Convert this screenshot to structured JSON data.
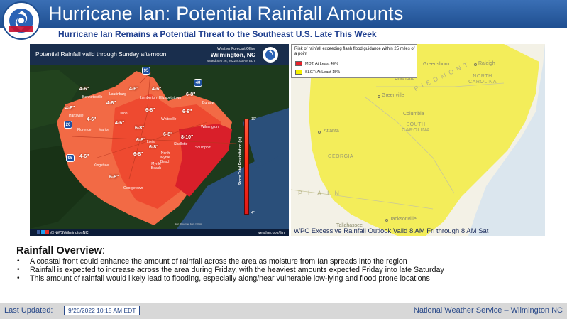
{
  "header": {
    "title": "Hurricane Ian:  Potential Rainfall Amounts",
    "subtitle": "Hurricane Ian Remains a Potential Threat to the Southeast U.S. Late This Week",
    "logo_text": "NATIONAL WEATHER SERVICE"
  },
  "rainfall_map": {
    "title": "Potential Rainfall valid through Sunday afternoon",
    "office_label": "Weather Forecast Office",
    "office_name": "Wilmington, NC",
    "issued": "Issued Sep 26, 2022 8:03 AM EDT",
    "scale_title": "Storm Total Precipitation (in)",
    "scale_max": "10\"",
    "scale_min": "4\"",
    "social": "@NWSWilmingtonNC",
    "website": "weather.gov/ilm",
    "source_note": "Esri, DeLorme, FAO, NOAA",
    "routes": [
      "95",
      "40",
      "20",
      "95"
    ],
    "amount_labels": [
      "4-6\"",
      "4-6\"",
      "4-6\"",
      "4-6\"",
      "4-6\"",
      "4-6\"",
      "6-8\"",
      "6-8\"",
      "6-8\"",
      "4-6\"",
      "6-8\"",
      "6-8\"",
      "8-10\"",
      "6-8\"",
      "6-8\"",
      "6-8\"",
      "4-6\"",
      "6-8\""
    ],
    "cities": [
      "Bennettsville",
      "Laurinburg",
      "Lumberton",
      "Elizabethtown",
      "Burgaw",
      "Hartsville",
      "Dillon",
      "Whiteville",
      "Wilmington",
      "Florence",
      "Marion",
      "Loris",
      "Shallotte",
      "Southport",
      "Kingstree",
      "North Myrtle Beach",
      "Myrtle Beach",
      "Georgetown"
    ],
    "colors": {
      "band_4_6": "#f26a45",
      "band_6_8": "#ee4a30",
      "band_8_10": "#d91f2a",
      "land": "#1d3a1c",
      "water": "#2a4f7a"
    }
  },
  "outlook_map": {
    "legend_title": "Risk of rainfall exceeding flash flood guidance within 25 miles of a point",
    "legend_items": [
      {
        "label": "MDT: At Least 40%",
        "color": "#e8202a"
      },
      {
        "label": "SLGT: At Least 15%",
        "color": "#f5f000"
      }
    ],
    "cities": [
      "Greensboro",
      "Raleigh",
      "Charlotte",
      "Greenville",
      "Columbia",
      "Atlanta",
      "Tallahassee",
      "Jacksonville"
    ],
    "states": [
      "NORTH CAROLINA",
      "SOUTH CAROLINA",
      "GEORGIA"
    ],
    "regions": [
      "PIEDMONT",
      "PLAIN"
    ],
    "caption": "WPC Excessive Rainfall Outlook Valid 8 AM Fri through 8 AM Sat",
    "colors": {
      "slight": "#f2ec52",
      "land": "#f3f1e6",
      "water": "#dbe6ee"
    }
  },
  "overview": {
    "title": "Rainfall Overview",
    "bullets": [
      "A coastal front could enhance the amount of rainfall across the area as moisture from Ian spreads into the region",
      "Rainfall is expected to increase across the area during Friday, with the heaviest amounts expected Friday into late Saturday",
      "This amount of rainfall would likely lead to flooding, especially along/near vulnerable low-lying and flood prone locations"
    ]
  },
  "footer": {
    "last_updated_label": "Last Updated:",
    "last_updated_value": "9/26/2022   10:15 AM EDT",
    "organization": "National Weather Service – Wilmington NC"
  }
}
